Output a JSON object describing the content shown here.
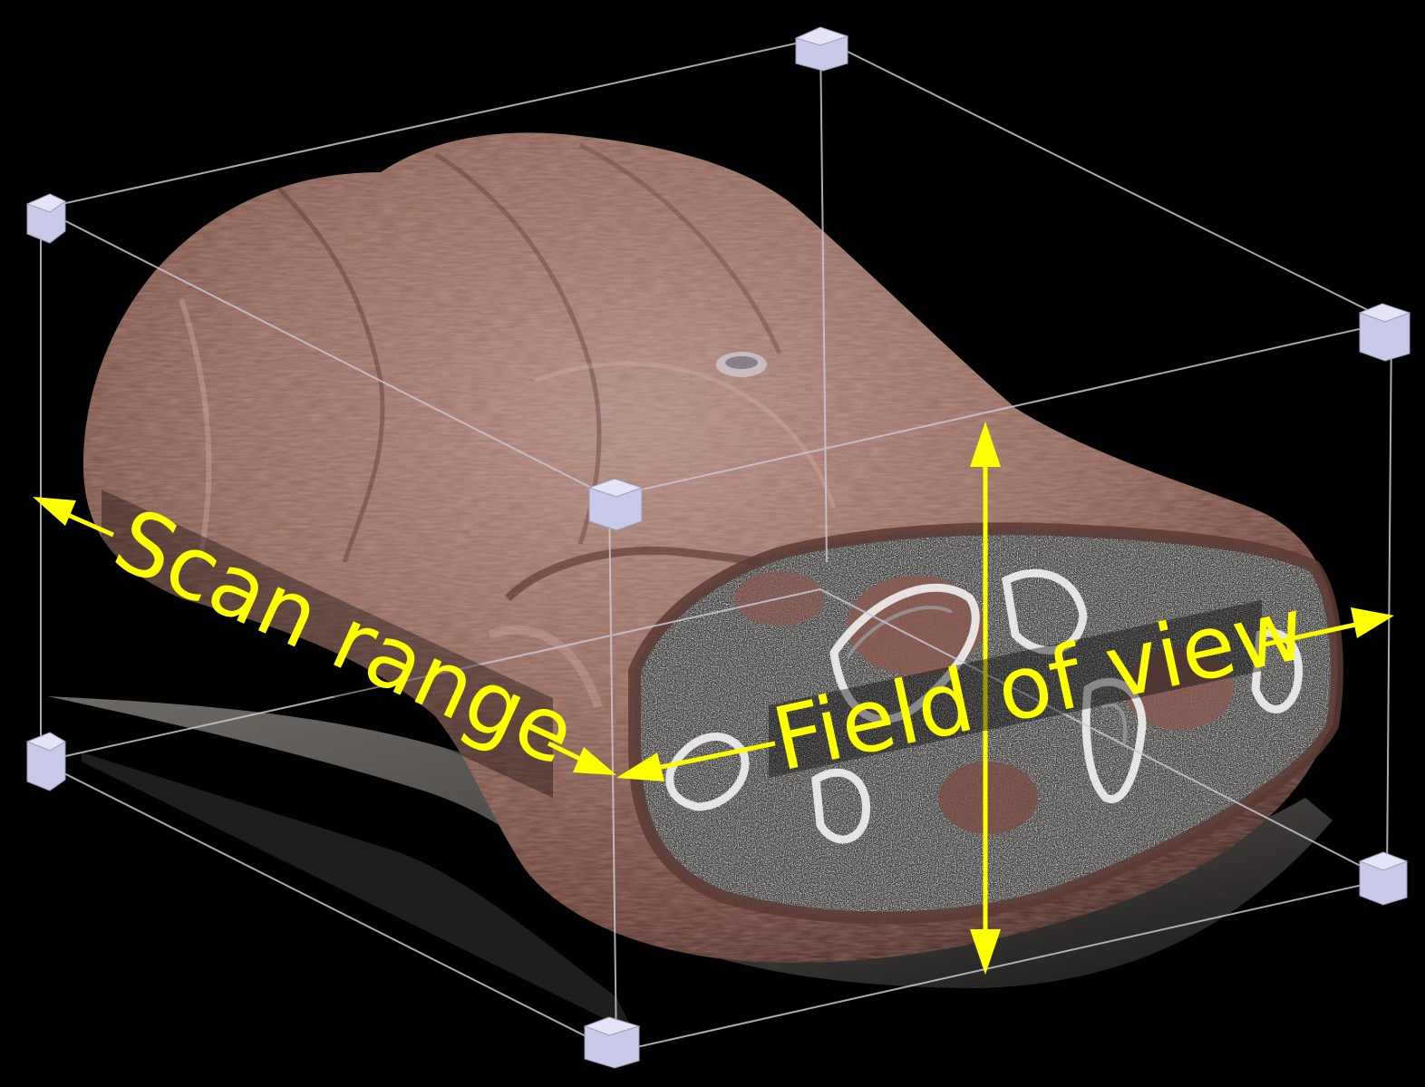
{
  "annotations": {
    "scan_range": "Scan range",
    "field_of_view": "Field of view"
  },
  "colors": {
    "background": "#000000",
    "annotation": "#ffff00",
    "bounding_box": "#c8c8d4",
    "corner_marker": "#c9c9ea",
    "tissue": "#8f675c"
  }
}
